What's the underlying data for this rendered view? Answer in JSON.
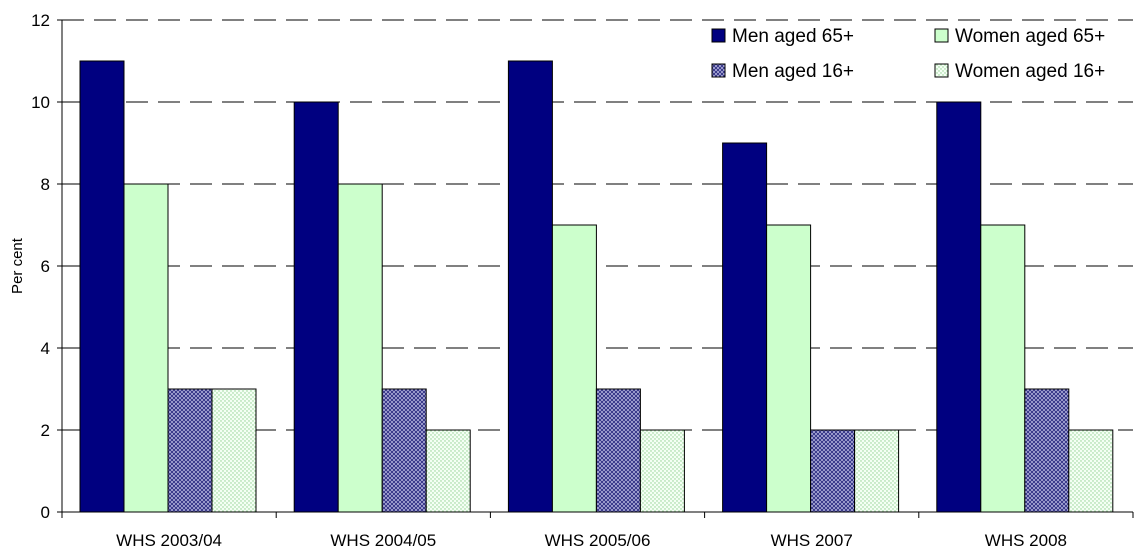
{
  "chart_data": {
    "type": "bar",
    "categories": [
      "WHS 2003/04",
      "WHS 2004/05",
      "WHS 2005/06",
      "WHS 2007",
      "WHS 2008"
    ],
    "series": [
      {
        "name": "Men aged 65+",
        "values": [
          11,
          10,
          11,
          9,
          10
        ],
        "color": "#000080",
        "pattern": "solid"
      },
      {
        "name": "Women aged 65+",
        "values": [
          8,
          8,
          7,
          7,
          7
        ],
        "color": "#ccffcc",
        "pattern": "solid"
      },
      {
        "name": "Men aged 16+",
        "values": [
          3,
          3,
          3,
          2,
          3
        ],
        "color": "#9999cc",
        "pattern": "crosshatch"
      },
      {
        "name": "Women aged 16+",
        "values": [
          3,
          2,
          2,
          2,
          2
        ],
        "color": "#e6ffe6",
        "pattern": "dots"
      }
    ],
    "title": "",
    "xlabel": "",
    "ylabel": "Per cent",
    "ylim": [
      0,
      12
    ],
    "yticks": [
      0,
      2,
      4,
      6,
      8,
      10,
      12
    ],
    "grid": "horizontal-dashed",
    "legend_position": "top-right"
  }
}
